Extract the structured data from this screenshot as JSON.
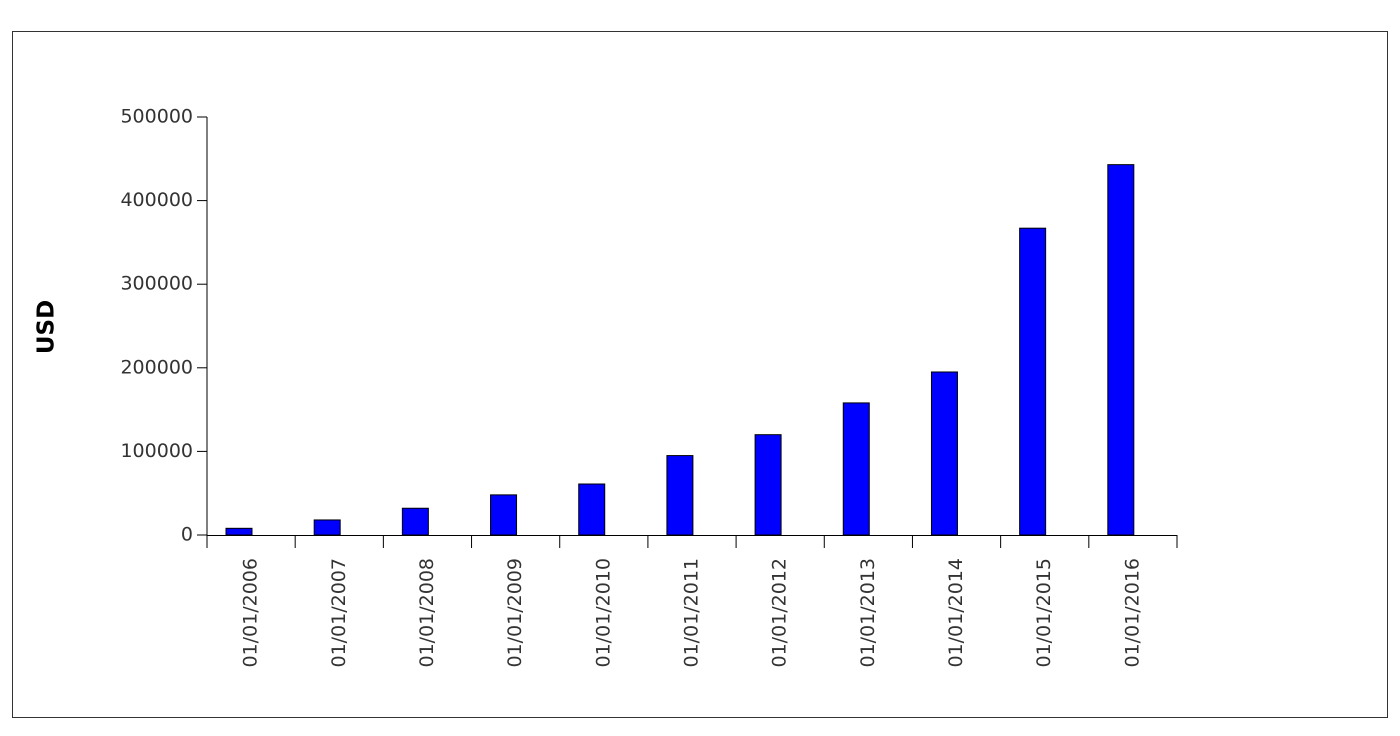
{
  "chart_data": {
    "type": "bar",
    "y_label": "USD",
    "categories": [
      "01/01/2006",
      "01/01/2007",
      "01/01/2008",
      "01/01/2009",
      "01/01/2010",
      "01/01/2011",
      "01/01/2012",
      "01/01/2013",
      "01/01/2014",
      "01/01/2015",
      "01/01/2016"
    ],
    "values": [
      8000,
      18000,
      32000,
      48000,
      61000,
      95000,
      120000,
      158000,
      195000,
      367000,
      443000
    ],
    "color": "#0000ff",
    "ylim": [
      0,
      500000
    ],
    "yticks": [
      0,
      100000,
      200000,
      300000,
      400000,
      500000
    ]
  }
}
